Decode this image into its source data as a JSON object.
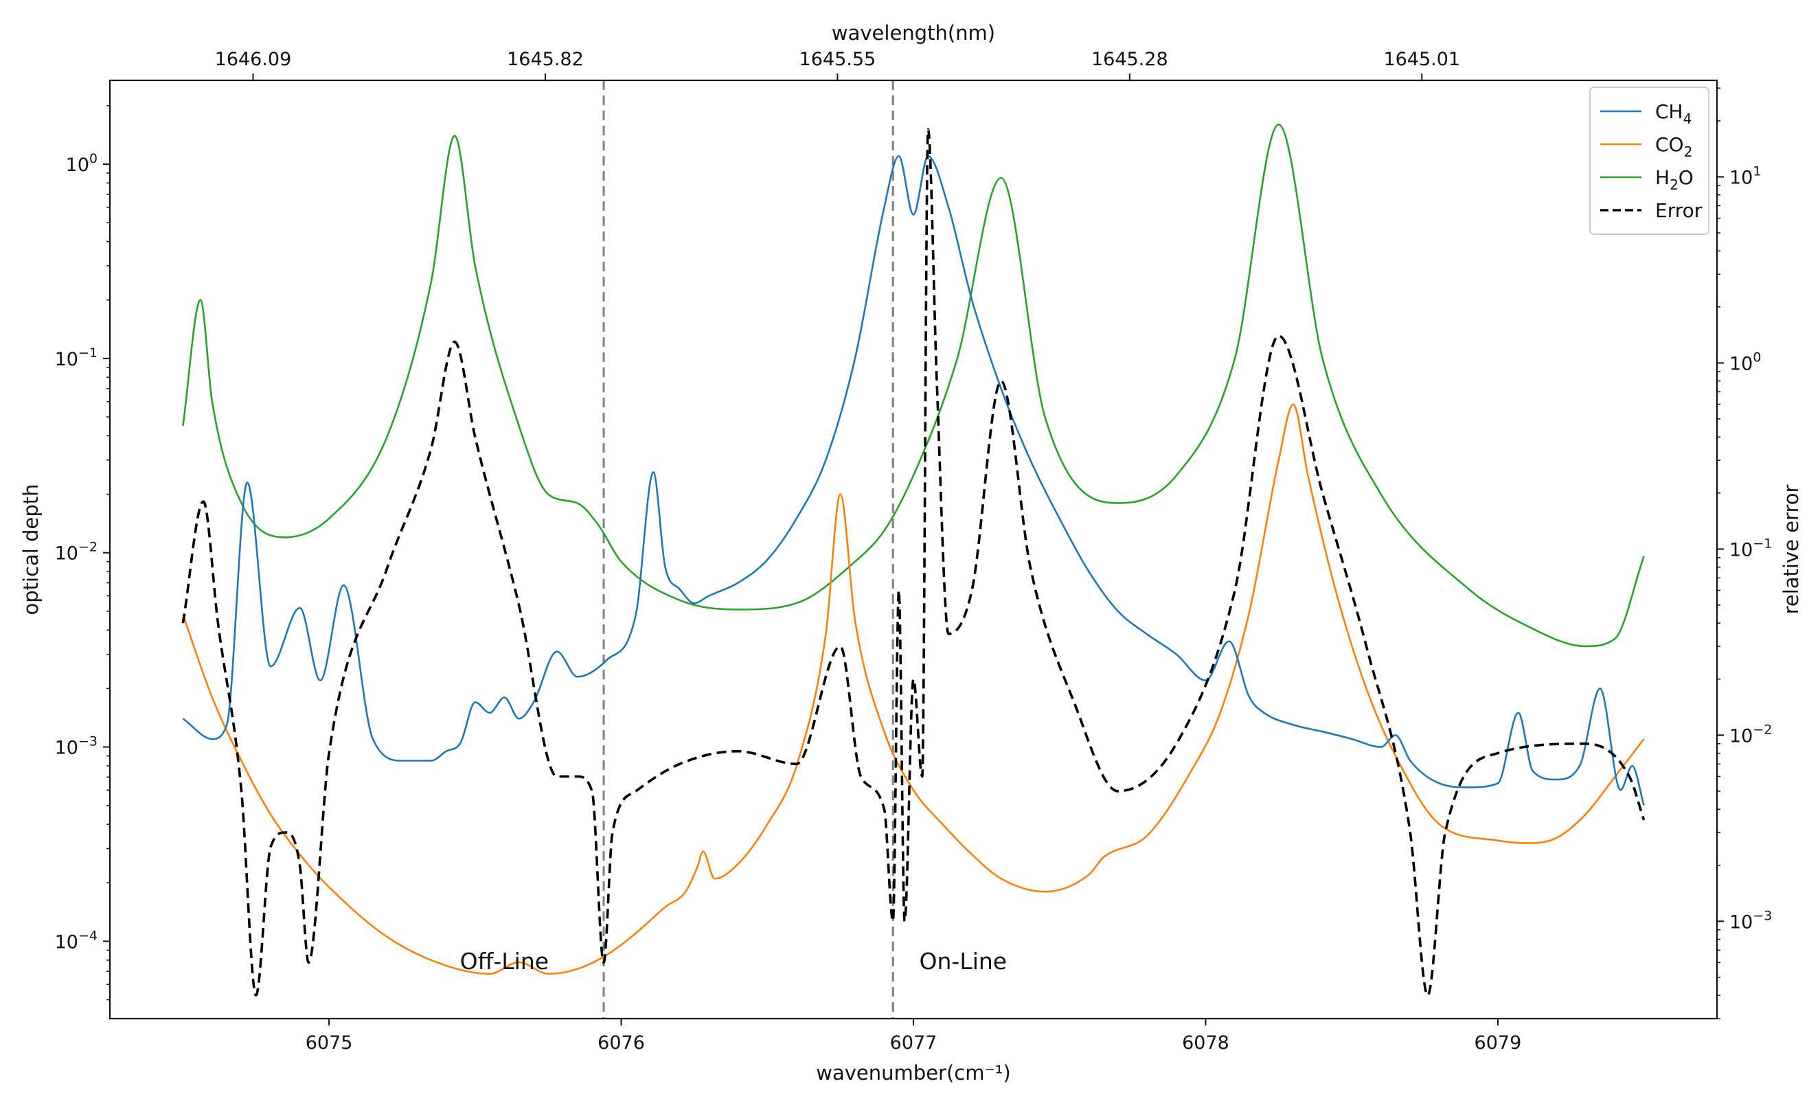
{
  "chart_data": {
    "type": "line",
    "title": "",
    "xlabel": "wavenumber(cm⁻¹)",
    "ylabel": "optical depth",
    "ylabel_right": "relative error",
    "xlabel_top": "wavelength(nm)",
    "xlim": [
      6074.25,
      6079.75
    ],
    "ylim_left": [
      4e-05,
      2.7
    ],
    "ylim_right": [
      0.0003,
      33
    ],
    "y_scale": "log",
    "x_ticks": [
      6075,
      6076,
      6077,
      6078,
      6079
    ],
    "x_tick_labels": [
      "6075",
      "6076",
      "6077",
      "6078",
      "6079"
    ],
    "x_top_tick_labels": [
      "1646.09",
      "1645.82",
      "1645.55",
      "1645.28",
      "1645.01"
    ],
    "x_top_tick_positions": [
      6074.74,
      6075.74,
      6076.74,
      6077.74,
      6078.74
    ],
    "y_left_ticks": [
      0.0001,
      0.001,
      0.01,
      0.1,
      1
    ],
    "y_left_tick_labels": [
      {
        "base": "10",
        "exp": "−4"
      },
      {
        "base": "10",
        "exp": "−3"
      },
      {
        "base": "10",
        "exp": "−2"
      },
      {
        "base": "10",
        "exp": "−1"
      },
      {
        "base": "10",
        "exp": "0"
      }
    ],
    "y_right_ticks": [
      0.001,
      0.01,
      0.1,
      1,
      10
    ],
    "y_right_tick_labels": [
      {
        "base": "10",
        "exp": "−3"
      },
      {
        "base": "10",
        "exp": "−2"
      },
      {
        "base": "10",
        "exp": "−1"
      },
      {
        "base": "10",
        "exp": "0"
      },
      {
        "base": "10",
        "exp": "1"
      }
    ],
    "vlines": [
      {
        "x": 6075.94,
        "label": "Off-Line",
        "label_x": 6075.6,
        "label_y": 7.8e-05,
        "color": "#7f7f7f"
      },
      {
        "x": 6076.93,
        "label": "On-Line",
        "label_x": 6077.17,
        "label_y": 7.8e-05,
        "color": "#7f7f7f"
      }
    ],
    "legend": {
      "location": "top-right",
      "entries": [
        {
          "name": "CH4",
          "base": "CH",
          "sub": "4",
          "tail": "",
          "color": "#1f77b4",
          "dash": false
        },
        {
          "name": "CO2",
          "base": "CO",
          "sub": "2",
          "tail": "",
          "color": "#ff7f0e",
          "dash": false
        },
        {
          "name": "H2O",
          "base": "H",
          "sub": "2",
          "tail": "O",
          "color": "#2ca02c",
          "dash": false
        },
        {
          "name": "Error",
          "base": "Error",
          "sub": "",
          "tail": "",
          "color": "#000000",
          "dash": true
        }
      ]
    },
    "series": [
      {
        "name": "CH4",
        "color": "#1f77b4",
        "axis": "left",
        "dashed": false,
        "x": [
          6074.5,
          6074.6,
          6074.65,
          6074.72,
          6074.8,
          6074.9,
          6074.97,
          6075.05,
          6075.15,
          6075.25,
          6075.35,
          6075.4,
          6075.45,
          6075.5,
          6075.55,
          6075.6,
          6075.65,
          6075.7,
          6075.78,
          6075.85,
          6075.95,
          6076.05,
          6076.11,
          6076.15,
          6076.2,
          6076.25,
          6076.3,
          6076.4,
          6076.5,
          6076.6,
          6076.7,
          6076.8,
          6076.9,
          6076.95,
          6077.0,
          6077.05,
          6077.12,
          6077.2,
          6077.3,
          6077.4,
          6077.5,
          6077.6,
          6077.7,
          6077.8,
          6077.9,
          6078.0,
          6078.08,
          6078.15,
          6078.2,
          6078.3,
          6078.4,
          6078.5,
          6078.6,
          6078.65,
          6078.7,
          6078.8,
          6078.9,
          6079.0,
          6079.07,
          6079.12,
          6079.2,
          6079.28,
          6079.35,
          6079.42,
          6079.46,
          6079.5
        ],
        "y": [
          0.0014,
          0.0011,
          0.0013,
          0.023,
          0.0026,
          0.0052,
          0.0022,
          0.0068,
          0.0011,
          0.00085,
          0.00085,
          0.00095,
          0.00105,
          0.0017,
          0.0015,
          0.0018,
          0.0014,
          0.0017,
          0.0031,
          0.0023,
          0.0028,
          0.0048,
          0.026,
          0.0085,
          0.0065,
          0.0055,
          0.006,
          0.007,
          0.0092,
          0.015,
          0.03,
          0.1,
          0.6,
          1.1,
          0.55,
          1.1,
          0.6,
          0.2,
          0.07,
          0.03,
          0.015,
          0.008,
          0.005,
          0.0038,
          0.003,
          0.0022,
          0.0035,
          0.0018,
          0.0015,
          0.0013,
          0.0012,
          0.0011,
          0.001,
          0.00115,
          0.00085,
          0.00065,
          0.00062,
          0.00065,
          0.0015,
          0.00075,
          0.00068,
          0.0008,
          0.002,
          0.0006,
          0.0008,
          0.0005
        ]
      },
      {
        "name": "CO2",
        "color": "#ff7f0e",
        "axis": "left",
        "dashed": false,
        "x": [
          6074.5,
          6074.6,
          6074.7,
          6074.8,
          6074.9,
          6075.0,
          6075.2,
          6075.4,
          6075.55,
          6075.65,
          6075.75,
          6075.85,
          6075.95,
          6076.05,
          6076.15,
          6076.22,
          6076.26,
          6076.28,
          6076.32,
          6076.4,
          6076.5,
          6076.6,
          6076.7,
          6076.75,
          6076.8,
          6076.9,
          6077.0,
          6077.1,
          6077.2,
          6077.3,
          6077.45,
          6077.6,
          6077.65,
          6077.8,
          6077.95,
          6078.05,
          6078.15,
          6078.25,
          6078.3,
          6078.35,
          6078.45,
          6078.55,
          6078.65,
          6078.8,
          6079.0,
          6079.1,
          6079.2,
          6079.3,
          6079.4,
          6079.5
        ],
        "y": [
          0.0048,
          0.0018,
          0.00085,
          0.00045,
          0.00028,
          0.00019,
          0.000105,
          7.5e-05,
          6.8e-05,
          7.8e-05,
          6.8e-05,
          7.2e-05,
          8.5e-05,
          0.00011,
          0.00015,
          0.00018,
          0.00024,
          0.00029,
          0.00021,
          0.00025,
          0.0004,
          0.0008,
          0.0038,
          0.02,
          0.0045,
          0.0012,
          0.0006,
          0.0004,
          0.00028,
          0.00021,
          0.00018,
          0.00022,
          0.00027,
          0.00035,
          0.00075,
          0.0015,
          0.005,
          0.03,
          0.058,
          0.025,
          0.006,
          0.002,
          0.0009,
          0.0004,
          0.00033,
          0.00032,
          0.00034,
          0.00045,
          0.0007,
          0.0011
        ]
      },
      {
        "name": "H2O",
        "color": "#2ca02c",
        "axis": "left",
        "dashed": false,
        "x": [
          6074.5,
          6074.56,
          6074.6,
          6074.7,
          6074.85,
          6075.0,
          6075.2,
          6075.35,
          6075.43,
          6075.5,
          6075.65,
          6075.75,
          6075.85,
          6075.92,
          6076.0,
          6076.2,
          6076.4,
          6076.6,
          6076.8,
          6076.9,
          6077.0,
          6077.15,
          6077.3,
          6077.45,
          6077.7,
          6077.9,
          6078.1,
          6078.25,
          6078.4,
          6078.6,
          6078.9,
          6079.1,
          6079.3,
          6079.4,
          6079.5
        ],
        "y": [
          0.045,
          0.2,
          0.06,
          0.018,
          0.012,
          0.015,
          0.04,
          0.25,
          1.4,
          0.3,
          0.045,
          0.02,
          0.018,
          0.014,
          0.009,
          0.0057,
          0.0051,
          0.0055,
          0.009,
          0.013,
          0.025,
          0.1,
          0.85,
          0.05,
          0.018,
          0.025,
          0.1,
          1.6,
          0.1,
          0.02,
          0.0065,
          0.0042,
          0.0033,
          0.0036,
          0.0096
        ]
      },
      {
        "name": "Error",
        "color": "#000000",
        "axis": "right",
        "dashed": true,
        "x": [
          6074.5,
          6074.57,
          6074.62,
          6074.7,
          6074.75,
          6074.8,
          6074.85,
          6074.9,
          6074.93,
          6075.0,
          6075.2,
          6075.35,
          6075.43,
          6075.5,
          6075.65,
          6075.78,
          6075.85,
          6075.9,
          6075.94,
          6075.97,
          6076.05,
          6076.2,
          6076.4,
          6076.6,
          6076.75,
          6076.82,
          6076.9,
          6076.93,
          6076.95,
          6076.97,
          6077.0,
          6077.03,
          6077.05,
          6077.08,
          6077.12,
          6077.2,
          6077.3,
          6077.4,
          6077.55,
          6077.7,
          6077.9,
          6078.1,
          6078.25,
          6078.4,
          6078.55,
          6078.7,
          6078.76,
          6078.82,
          6079.0,
          6079.3,
          6079.45,
          6079.5
        ],
        "y": [
          0.04,
          0.18,
          0.04,
          0.005,
          0.0004,
          0.0025,
          0.003,
          0.002,
          0.0006,
          0.008,
          0.08,
          0.35,
          1.3,
          0.4,
          0.05,
          0.006,
          0.006,
          0.005,
          0.0006,
          0.003,
          0.005,
          0.007,
          0.0082,
          0.007,
          0.03,
          0.006,
          0.004,
          0.001,
          0.06,
          0.001,
          0.02,
          0.006,
          18,
          0.8,
          0.035,
          0.06,
          0.8,
          0.08,
          0.015,
          0.005,
          0.009,
          0.06,
          1.4,
          0.2,
          0.03,
          0.003,
          0.0004,
          0.003,
          0.008,
          0.009,
          0.006,
          0.0035
        ]
      }
    ]
  }
}
